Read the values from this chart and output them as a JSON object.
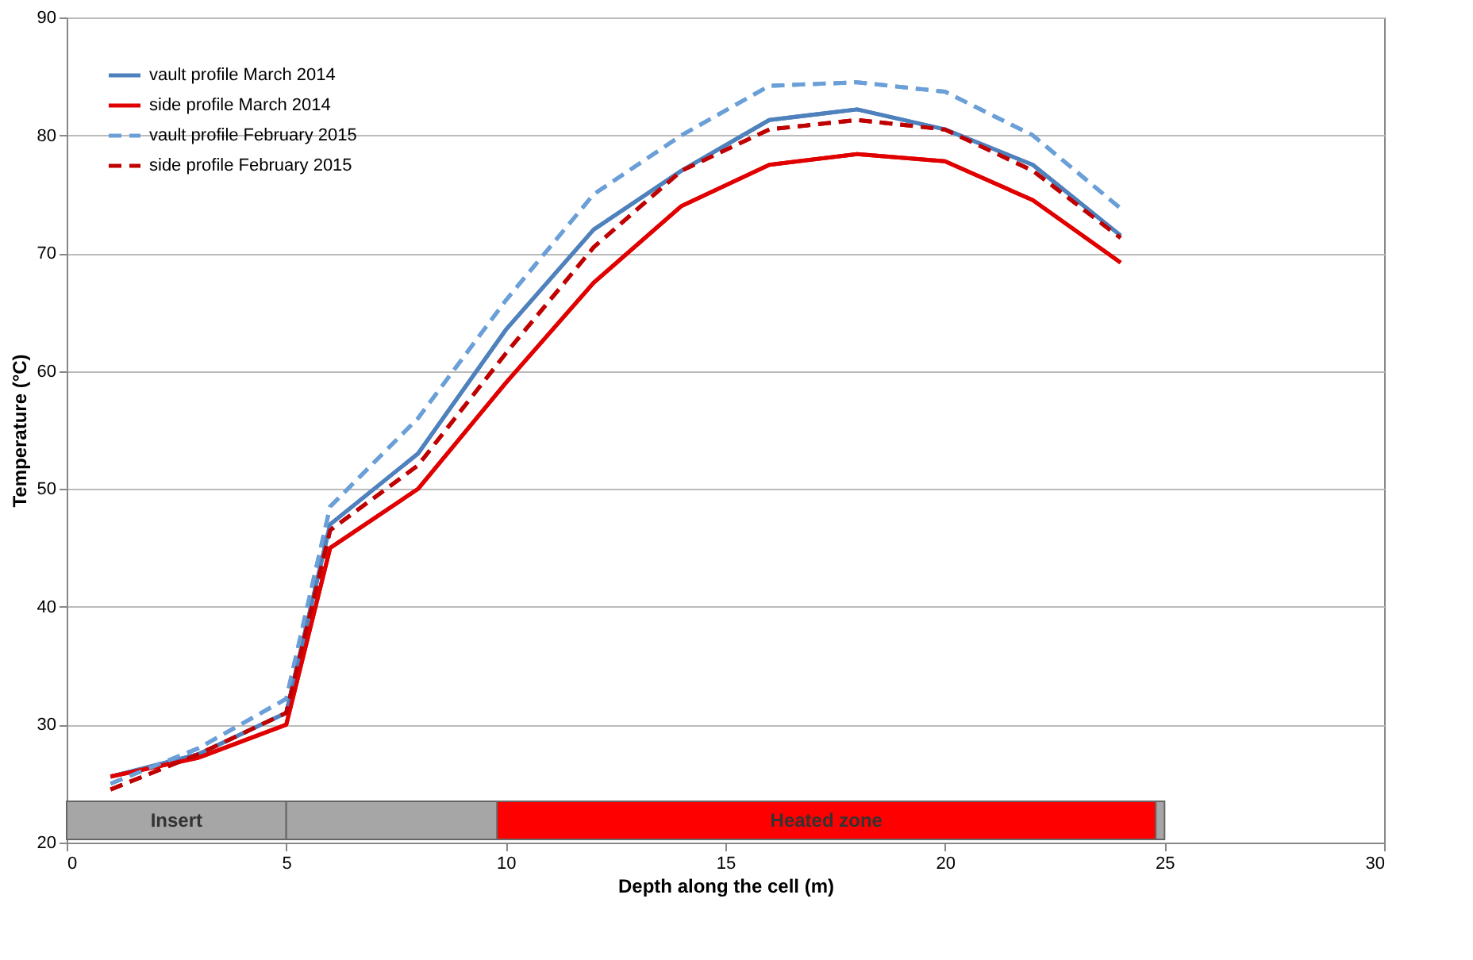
{
  "chart_data": {
    "type": "line",
    "xlabel": "Depth along the cell (m)",
    "ylabel": "Temperature (°C)",
    "xlim": [
      0,
      30
    ],
    "xticks": [
      0,
      5,
      10,
      15,
      20,
      25,
      30
    ],
    "ylim": [
      20,
      90
    ],
    "yticks": [
      20,
      30,
      40,
      50,
      60,
      70,
      80,
      90
    ],
    "grid": "y",
    "legend": "top left",
    "marker": "none",
    "x": [
      1,
      3,
      5,
      6,
      8,
      10,
      12,
      14,
      16,
      18,
      20,
      22,
      24
    ],
    "series": [
      {
        "name": "vault profile March 2014",
        "color": "#4f81bd",
        "line_style": "solid",
        "values": [
          25.6,
          27.5,
          31,
          47,
          53,
          63.5,
          72,
          77,
          81.3,
          82.2,
          80.5,
          77.5,
          71.5
        ]
      },
      {
        "name": "side profile March 2014",
        "color": "#e00000",
        "line_style": "solid",
        "values": [
          25.6,
          27.2,
          30,
          45,
          50,
          59,
          67.5,
          74,
          77.5,
          78.4,
          77.8,
          74.5,
          69.2
        ]
      },
      {
        "name": "vault profile February 2015",
        "color": "#6a9fd8",
        "line_style": "dashed",
        "values": [
          25,
          28,
          32.2,
          48.5,
          56,
          66,
          75,
          80,
          84.2,
          84.5,
          83.7,
          80,
          73.8
        ]
      },
      {
        "name": "side profile February 2015",
        "color": "#c00000",
        "line_style": "dashed",
        "values": [
          24.5,
          27.5,
          31,
          46.5,
          52,
          61.5,
          70.5,
          77,
          80.5,
          81.3,
          80.5,
          77,
          71.3
        ]
      }
    ],
    "bands": [
      {
        "axis": "x",
        "from": 0,
        "to": 5,
        "label": "Insert",
        "color": "#a6a6a6"
      },
      {
        "axis": "x",
        "from": 5,
        "to": 25,
        "label": null,
        "color": "#a6a6a6"
      },
      {
        "axis": "x",
        "from": 9.8,
        "to": 24.8,
        "label": "Heated zone",
        "color": "#ff0000"
      }
    ]
  }
}
